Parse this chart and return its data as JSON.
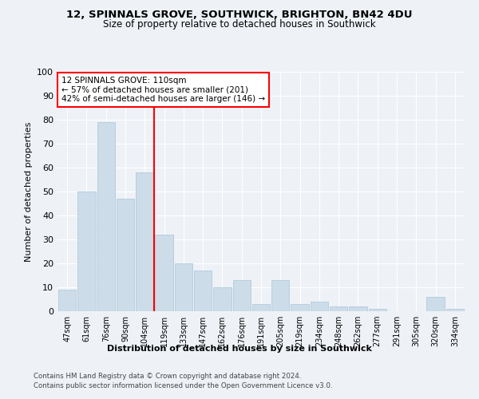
{
  "title1": "12, SPINNALS GROVE, SOUTHWICK, BRIGHTON, BN42 4DU",
  "title2": "Size of property relative to detached houses in Southwick",
  "xlabel": "Distribution of detached houses by size in Southwick",
  "ylabel": "Number of detached properties",
  "categories": [
    "47sqm",
    "61sqm",
    "76sqm",
    "90sqm",
    "104sqm",
    "119sqm",
    "133sqm",
    "147sqm",
    "162sqm",
    "176sqm",
    "191sqm",
    "205sqm",
    "219sqm",
    "234sqm",
    "248sqm",
    "262sqm",
    "277sqm",
    "291sqm",
    "305sqm",
    "320sqm",
    "334sqm"
  ],
  "values": [
    9,
    50,
    79,
    47,
    58,
    32,
    20,
    17,
    10,
    13,
    3,
    13,
    3,
    4,
    2,
    2,
    1,
    0,
    0,
    6,
    1
  ],
  "bar_color": "#ccdce8",
  "bar_edgecolor": "#aac4d8",
  "annotation_text": "12 SPINNALS GROVE: 110sqm\n← 57% of detached houses are smaller (201)\n42% of semi-detached houses are larger (146) →",
  "annotation_box_facecolor": "white",
  "annotation_box_edgecolor": "red",
  "vline_color": "red",
  "vline_x": 4.5,
  "ylim": [
    0,
    100
  ],
  "yticks": [
    0,
    10,
    20,
    30,
    40,
    50,
    60,
    70,
    80,
    90,
    100
  ],
  "footer1": "Contains HM Land Registry data © Crown copyright and database right 2024.",
  "footer2": "Contains public sector information licensed under the Open Government Licence v3.0.",
  "background_color": "#eef2f7",
  "plot_background": "#eef2f7",
  "grid_color": "white"
}
